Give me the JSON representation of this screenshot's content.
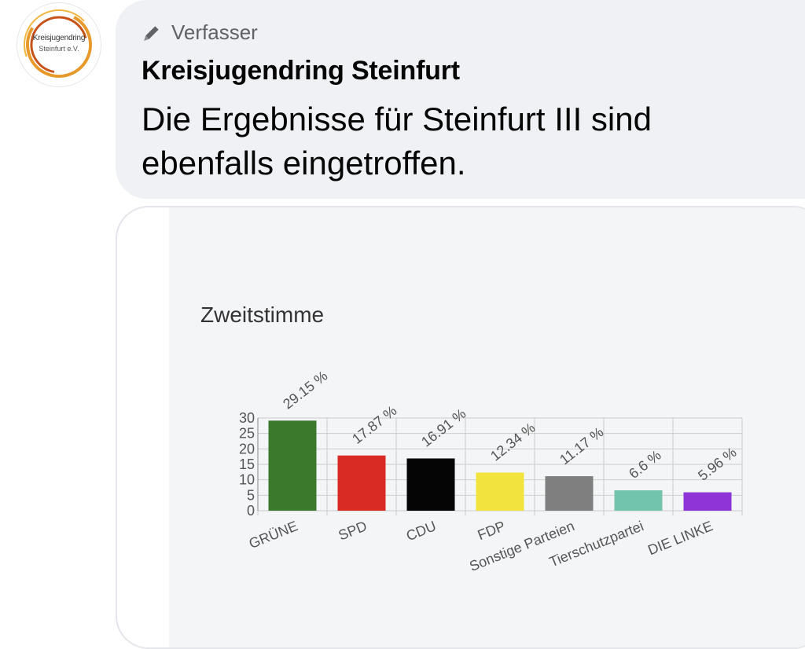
{
  "post": {
    "avatar_name": "Kreisjugendring",
    "avatar_sub": "Steinfurt e.V.",
    "badge_label": "Verfasser",
    "author": "Kreisjugendring Steinfurt",
    "message": "Die Ergebnisse für Steinfurt III sind ebenfalls eingetroffen."
  },
  "icons": {
    "badge": "pencil-icon"
  },
  "colors": {
    "bubble_bg": "#eff1f4",
    "card_bg": "#f4f5f7",
    "grid": "#cccccc"
  },
  "chart_data": {
    "type": "bar",
    "title": "Zweitstimme",
    "categories": [
      "GRÜNE",
      "SPD",
      "CDU",
      "FDP",
      "Sonstige Parteien",
      "Tierschutzpartei",
      "DIE LINKE"
    ],
    "values": [
      29.15,
      17.87,
      16.91,
      12.34,
      11.17,
      6.6,
      5.96
    ],
    "value_labels": [
      "29.15 %",
      "17.87 %",
      "16.91 %",
      "12.34 %",
      "11.17 %",
      "6.6 %",
      "5.96 %"
    ],
    "colors": [
      "#3b7a2d",
      "#d92b24",
      "#050505",
      "#f2e43c",
      "#7f7f7f",
      "#72c4ad",
      "#8e35d8"
    ],
    "yticks": [
      0,
      5,
      10,
      15,
      20,
      25,
      30
    ],
    "ylim": [
      0,
      30
    ],
    "grid": true,
    "xlabel": "",
    "ylabel": ""
  }
}
